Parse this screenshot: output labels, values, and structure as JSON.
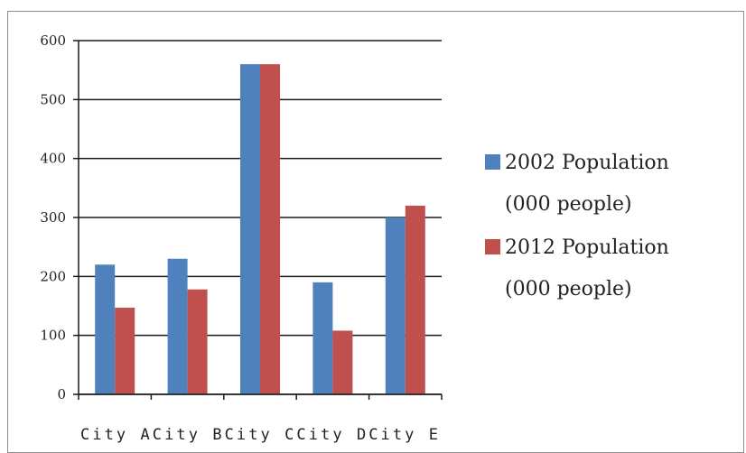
{
  "chart_data": {
    "type": "bar",
    "categories": [
      "City A",
      "City B",
      "City C",
      "City D",
      "City E"
    ],
    "category_label_text": "City  ACity  BCity  CCity  DCity  E",
    "series": [
      {
        "name": "2002 Population (000 people)",
        "name_lines": [
          "2002 Population",
          "(000 people)"
        ],
        "color": "#4f81bd",
        "values": [
          220,
          230,
          560,
          190,
          300
        ]
      },
      {
        "name": "2012 Population (000 people)",
        "name_lines": [
          "2012 Population",
          "(000 people)"
        ],
        "color": "#c0504d",
        "values": [
          147,
          178,
          560,
          108,
          320
        ]
      }
    ],
    "title": "",
    "xlabel": "",
    "ylabel": "",
    "ylim": [
      0,
      600
    ],
    "yticks": [
      0,
      100,
      200,
      300,
      400,
      500,
      600
    ],
    "grid": true,
    "legend_position": "right"
  }
}
